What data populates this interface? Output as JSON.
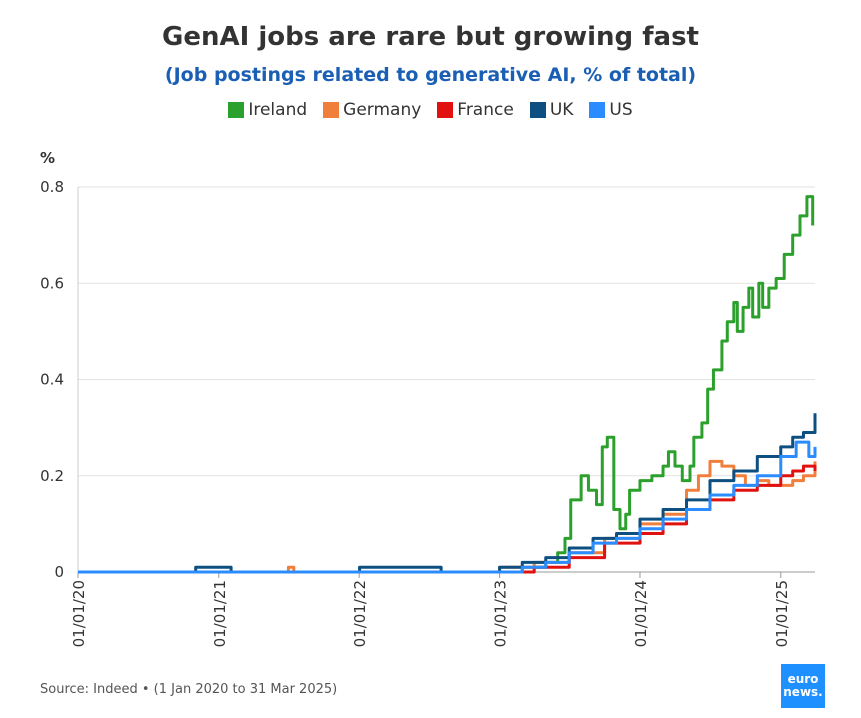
{
  "title": "GenAI jobs are rare but growing fast",
  "subtitle": "(Job postings related to generative AI, % of total)",
  "footer": "Source: Indeed • (1 Jan 2020 to 31 Mar 2025)",
  "logo": {
    "line1": "euro",
    "line2": "news."
  },
  "chart_data": {
    "type": "line",
    "ylabel": "%",
    "ylim": [
      0,
      0.8
    ],
    "yticks": [
      0,
      0.2,
      0.4,
      0.6,
      0.8
    ],
    "xlim": [
      "2020-01-01",
      "2025-03-31"
    ],
    "xticks": [
      "01/01/20",
      "01/01/21",
      "01/01/22",
      "01/01/23",
      "01/01/24",
      "01/01/25"
    ],
    "grid": true,
    "legend": "top-center",
    "series": [
      {
        "name": "Ireland",
        "color": "#2ca02c",
        "x": [
          "2020-01-01",
          "2023-01-01",
          "2023-02-01",
          "2023-03-01",
          "2023-04-01",
          "2023-05-01",
          "2023-06-01",
          "2023-06-20",
          "2023-07-05",
          "2023-08-01",
          "2023-08-20",
          "2023-09-10",
          "2023-09-25",
          "2023-10-08",
          "2023-10-25",
          "2023-11-10",
          "2023-11-25",
          "2023-12-05",
          "2024-01-01",
          "2024-02-01",
          "2024-03-01",
          "2024-03-15",
          "2024-04-01",
          "2024-04-20",
          "2024-05-10",
          "2024-05-20",
          "2024-06-10",
          "2024-06-25",
          "2024-07-10",
          "2024-08-01",
          "2024-08-15",
          "2024-09-01",
          "2024-09-10",
          "2024-09-25",
          "2024-10-10",
          "2024-10-20",
          "2024-11-05",
          "2024-11-15",
          "2024-12-01",
          "2024-12-20",
          "2025-01-10",
          "2025-02-01",
          "2025-02-20",
          "2025-03-10",
          "2025-03-25"
        ],
        "y": [
          0,
          0,
          0,
          0.01,
          0.01,
          0.02,
          0.04,
          0.07,
          0.15,
          0.2,
          0.17,
          0.14,
          0.26,
          0.28,
          0.13,
          0.09,
          0.12,
          0.17,
          0.19,
          0.2,
          0.22,
          0.25,
          0.22,
          0.19,
          0.22,
          0.28,
          0.31,
          0.38,
          0.42,
          0.48,
          0.52,
          0.56,
          0.5,
          0.55,
          0.59,
          0.53,
          0.6,
          0.55,
          0.59,
          0.61,
          0.66,
          0.7,
          0.74,
          0.78,
          0.72
        ]
      },
      {
        "name": "Germany",
        "color": "#f07f3c",
        "x": [
          "2020-01-01",
          "2021-06-01",
          "2021-07-01",
          "2021-07-15",
          "2023-01-01",
          "2023-04-01",
          "2023-07-01",
          "2023-10-01",
          "2024-01-01",
          "2024-03-01",
          "2024-05-01",
          "2024-06-01",
          "2024-07-01",
          "2024-08-01",
          "2024-09-01",
          "2024-10-01",
          "2024-11-01",
          "2024-12-01",
          "2025-01-01",
          "2025-02-01",
          "2025-03-01",
          "2025-03-31"
        ],
        "y": [
          0,
          0,
          0.01,
          0,
          0.01,
          0.02,
          0.04,
          0.07,
          0.1,
          0.12,
          0.17,
          0.2,
          0.23,
          0.22,
          0.2,
          0.18,
          0.19,
          0.18,
          0.18,
          0.19,
          0.2,
          0.23
        ]
      },
      {
        "name": "France",
        "color": "#e0110f",
        "x": [
          "2020-01-01",
          "2023-01-01",
          "2023-04-01",
          "2023-07-01",
          "2023-10-01",
          "2024-01-01",
          "2024-03-01",
          "2024-05-01",
          "2024-07-01",
          "2024-09-01",
          "2024-11-01",
          "2025-01-01",
          "2025-02-01",
          "2025-03-01",
          "2025-03-31"
        ],
        "y": [
          0,
          0,
          0.01,
          0.03,
          0.06,
          0.08,
          0.1,
          0.13,
          0.15,
          0.17,
          0.18,
          0.2,
          0.21,
          0.22,
          0.21
        ]
      },
      {
        "name": "UK",
        "color": "#0d4f80",
        "x": [
          "2020-01-01",
          "2020-11-01",
          "2020-11-02",
          "2021-02-01",
          "2021-02-02",
          "2022-01-01",
          "2022-01-02",
          "2022-08-01",
          "2022-08-02",
          "2023-01-01",
          "2023-03-01",
          "2023-05-01",
          "2023-07-01",
          "2023-09-01",
          "2023-11-01",
          "2024-01-01",
          "2024-03-01",
          "2024-05-01",
          "2024-07-01",
          "2024-09-01",
          "2024-11-01",
          "2025-01-01",
          "2025-02-01",
          "2025-03-01",
          "2025-03-31"
        ],
        "y": [
          0,
          0,
          0.01,
          0.01,
          0,
          0,
          0.01,
          0.01,
          0,
          0.01,
          0.02,
          0.03,
          0.05,
          0.07,
          0.08,
          0.11,
          0.13,
          0.15,
          0.19,
          0.21,
          0.24,
          0.26,
          0.28,
          0.29,
          0.33
        ]
      },
      {
        "name": "US",
        "color": "#2b8cff",
        "x": [
          "2020-01-01",
          "2023-01-01",
          "2023-03-01",
          "2023-05-01",
          "2023-07-01",
          "2023-09-01",
          "2023-11-01",
          "2024-01-01",
          "2024-03-01",
          "2024-05-01",
          "2024-07-01",
          "2024-09-01",
          "2024-11-01",
          "2025-01-01",
          "2025-02-10",
          "2025-02-25",
          "2025-03-15",
          "2025-03-31"
        ],
        "y": [
          0,
          0,
          0.01,
          0.02,
          0.04,
          0.06,
          0.07,
          0.09,
          0.11,
          0.13,
          0.16,
          0.18,
          0.2,
          0.24,
          0.27,
          0.27,
          0.24,
          0.26
        ]
      }
    ]
  }
}
